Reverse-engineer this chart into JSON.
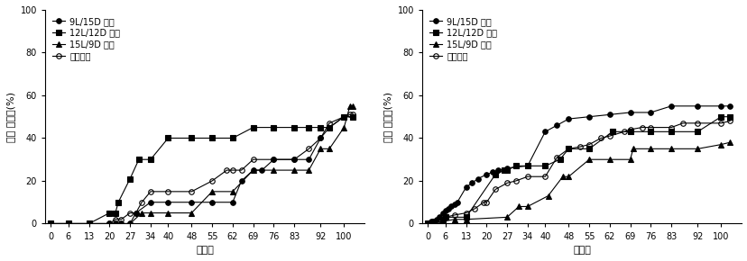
{
  "left": {
    "ylabel": "누적 폐사율(%)",
    "xlabel": "산란일",
    "ylim": [
      0,
      100
    ],
    "xticks": [
      0,
      6,
      13,
      20,
      27,
      34,
      40,
      48,
      55,
      62,
      69,
      76,
      83,
      92,
      100
    ],
    "series": [
      {
        "label": "9L/15D 암컷",
        "marker": "o",
        "markersize": 4,
        "color": "#000000",
        "fillstyle": "full",
        "x": [
          0,
          6,
          13,
          20,
          22,
          24,
          27,
          29,
          34,
          40,
          48,
          55,
          62,
          65,
          69,
          72,
          76,
          83,
          88,
          92,
          95,
          100,
          103
        ],
        "y": [
          0,
          0,
          0,
          0,
          0,
          0,
          0,
          5,
          10,
          10,
          10,
          10,
          10,
          20,
          25,
          25,
          30,
          30,
          30,
          40,
          45,
          50,
          50
        ]
      },
      {
        "label": "12L/12D 암컷",
        "marker": "s",
        "markersize": 4,
        "color": "#000000",
        "fillstyle": "full",
        "x": [
          0,
          6,
          13,
          20,
          22,
          23,
          27,
          30,
          34,
          40,
          48,
          55,
          62,
          69,
          76,
          83,
          88,
          92,
          95,
          100,
          103
        ],
        "y": [
          0,
          0,
          0,
          5,
          5,
          10,
          21,
          30,
          30,
          40,
          40,
          40,
          40,
          45,
          45,
          45,
          45,
          45,
          45,
          50,
          50
        ]
      },
      {
        "label": "15L/9D 암컷",
        "marker": "^",
        "markersize": 4,
        "color": "#000000",
        "fillstyle": "full",
        "x": [
          0,
          6,
          13,
          20,
          27,
          31,
          34,
          40,
          48,
          55,
          62,
          69,
          76,
          83,
          88,
          92,
          95,
          100,
          102,
          103
        ],
        "y": [
          0,
          0,
          0,
          0,
          0,
          5,
          5,
          5,
          5,
          15,
          15,
          25,
          25,
          25,
          25,
          35,
          35,
          45,
          55,
          55
        ]
      },
      {
        "label": "암컷전체",
        "marker": "o",
        "markersize": 4,
        "color": "#000000",
        "fillstyle": "none",
        "x": [
          0,
          6,
          13,
          20,
          22,
          24,
          27,
          29,
          31,
          34,
          40,
          48,
          55,
          60,
          62,
          65,
          69,
          76,
          83,
          88,
          92,
          95,
          100,
          102,
          103
        ],
        "y": [
          0,
          0,
          0,
          0,
          2,
          2,
          5,
          5,
          10,
          15,
          15,
          15,
          20,
          25,
          25,
          25,
          30,
          30,
          30,
          35,
          40,
          47,
          50,
          51,
          51
        ]
      }
    ]
  },
  "right": {
    "ylabel": "누적 폐사율(%)",
    "xlabel": "산란일",
    "ylim": [
      0,
      100
    ],
    "xticks": [
      0,
      6,
      13,
      20,
      27,
      34,
      40,
      48,
      55,
      62,
      69,
      76,
      83,
      92,
      100
    ],
    "series": [
      {
        "label": "9L/15D 수컷",
        "marker": "o",
        "markersize": 4,
        "color": "#000000",
        "fillstyle": "full",
        "x": [
          0,
          1,
          2,
          3,
          4,
          5,
          6,
          7,
          8,
          9,
          10,
          13,
          15,
          17,
          20,
          22,
          24,
          27,
          34,
          40,
          44,
          48,
          55,
          62,
          69,
          76,
          83,
          92,
          100,
          103
        ],
        "y": [
          0,
          1,
          1,
          2,
          3,
          5,
          6,
          7,
          8,
          9,
          10,
          17,
          19,
          21,
          23,
          24,
          25,
          26,
          27,
          43,
          46,
          49,
          50,
          51,
          52,
          52,
          55,
          55,
          55,
          55
        ]
      },
      {
        "label": "12L/12D 수컷",
        "marker": "s",
        "markersize": 4,
        "color": "#000000",
        "fillstyle": "full",
        "x": [
          0,
          2,
          5,
          6,
          13,
          23,
          26,
          27,
          30,
          34,
          40,
          45,
          48,
          55,
          63,
          69,
          76,
          83,
          92,
          100,
          103
        ],
        "y": [
          0,
          1,
          2,
          3,
          3,
          23,
          25,
          25,
          27,
          27,
          27,
          30,
          35,
          35,
          43,
          43,
          43,
          43,
          43,
          50,
          50
        ]
      },
      {
        "label": "15L/9D 수컷",
        "marker": "^",
        "markersize": 4,
        "color": "#000000",
        "fillstyle": "full",
        "x": [
          0,
          5,
          9,
          13,
          27,
          31,
          34,
          41,
          46,
          48,
          55,
          62,
          69,
          70,
          76,
          83,
          92,
          100,
          103
        ],
        "y": [
          0,
          1,
          2,
          2,
          3,
          8,
          8,
          13,
          22,
          22,
          30,
          30,
          30,
          35,
          35,
          35,
          35,
          37,
          38
        ]
      },
      {
        "label": "수컷전체",
        "marker": "o",
        "markersize": 4,
        "color": "#000000",
        "fillstyle": "none",
        "x": [
          0,
          2,
          4,
          6,
          9,
          13,
          16,
          19,
          20,
          23,
          27,
          30,
          34,
          40,
          44,
          48,
          52,
          55,
          59,
          62,
          67,
          69,
          73,
          76,
          83,
          87,
          92,
          100,
          103
        ],
        "y": [
          0,
          1,
          2,
          3,
          4,
          5,
          7,
          10,
          10,
          16,
          19,
          20,
          22,
          22,
          31,
          35,
          36,
          37,
          40,
          41,
          43,
          44,
          45,
          45,
          45,
          47,
          47,
          47,
          48
        ]
      }
    ]
  },
  "tick_fontsize": 7,
  "label_fontsize": 8,
  "legend_fontsize": 7
}
